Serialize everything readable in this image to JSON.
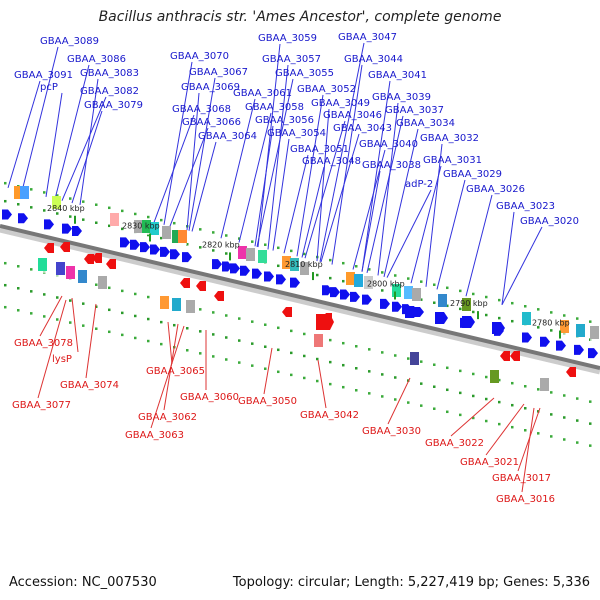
{
  "title": "Bacillus anthracis str. 'Ames Ancestor', complete genome",
  "accession": "Accession: NC_007530",
  "summary": "Topology: circular; Length: 5,227,419 bp; Genes: 5,336",
  "colors": {
    "forward_gene": "#1010ee",
    "reverse_gene": "#ee1010",
    "backbone": "#888888",
    "kbp_tick": "#229922"
  },
  "kbp_ticks": [
    "2840 kbp",
    "2830 kbp",
    "2820 kbp",
    "2810 kbp",
    "2800 kbp",
    "2790 kbp",
    "2780 kbp"
  ],
  "forward_labels": [
    "GBAA_3089",
    "GBAA_3086",
    "GBAA_3091",
    "GBAA_3083",
    "pcP",
    "GBAA_3082",
    "GBAA_3079",
    "GBAA_3070",
    "GBAA_3067",
    "GBAA_3069",
    "GBAA_3068",
    "GBAA_3066",
    "GBAA_3064",
    "GBAA_3059",
    "GBAA_3057",
    "GBAA_3055",
    "GBAA_3061",
    "GBAA_3058",
    "GBAA_3056",
    "GBAA_3054",
    "GBAA_3047",
    "GBAA_3044",
    "GBAA_3041",
    "GBAA_3052",
    "GBAA_3049",
    "GBAA_3046",
    "GBAA_3043",
    "GBAA_3051",
    "GBAA_3048",
    "GBAA_3039",
    "GBAA_3037",
    "GBAA_3034",
    "GBAA_3040",
    "GBAA_3038",
    "GBAA_3032",
    "adP-2",
    "GBAA_3031",
    "GBAA_3029",
    "GBAA_3026",
    "GBAA_3023",
    "GBAA_3020"
  ],
  "reverse_labels": [
    "GBAA_3078",
    "lysP",
    "GBAA_3077",
    "GBAA_3074",
    "GBAA_3065",
    "GBAA_3062",
    "GBAA_3063",
    "GBAA_3060",
    "GBAA_3050",
    "GBAA_3042",
    "GBAA_3030",
    "GBAA_3022",
    "GBAA_3021",
    "GBAA_3017",
    "GBAA_3016"
  ]
}
